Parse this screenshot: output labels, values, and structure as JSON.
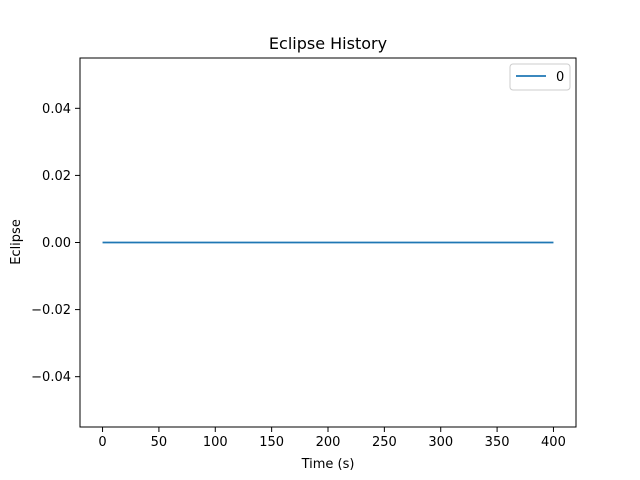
{
  "chart_data": {
    "type": "line",
    "title": "Eclipse History",
    "xlabel": "Time (s)",
    "ylabel": "Eclipse",
    "xlim": [
      -20,
      420
    ],
    "ylim": [
      -0.055,
      0.055
    ],
    "xticks": [
      0,
      50,
      100,
      150,
      200,
      250,
      300,
      350,
      400
    ],
    "xtick_labels": [
      "0",
      "50",
      "100",
      "150",
      "200",
      "250",
      "300",
      "350",
      "400"
    ],
    "yticks": [
      -0.04,
      -0.02,
      0.0,
      0.02,
      0.04
    ],
    "ytick_labels": [
      "−0.04",
      "−0.02",
      "0.00",
      "0.02",
      "0.04"
    ],
    "grid": false,
    "legend_position": "top-right",
    "series": [
      {
        "name": "0",
        "color": "#1f77b4",
        "x": [
          0,
          400
        ],
        "y": [
          0,
          0
        ]
      }
    ]
  }
}
